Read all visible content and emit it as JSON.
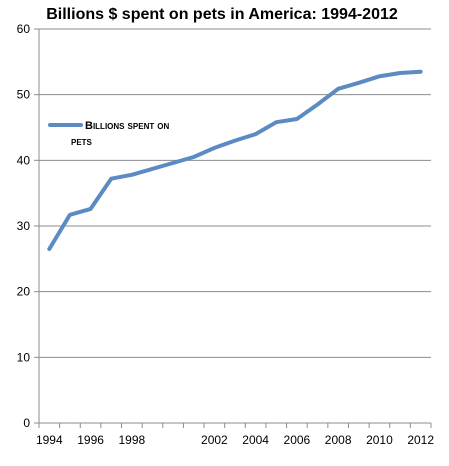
{
  "chart_data": {
    "type": "line",
    "title": "Billions $ spent on pets in America: 1994-2012",
    "xlabel": "",
    "ylabel": "",
    "x": [
      1994,
      1995,
      1996,
      1997,
      1998,
      2001,
      2002,
      2003,
      2004,
      2005,
      2006,
      2007,
      2008,
      2009,
      2010,
      2011,
      2012
    ],
    "x_ticks": [
      "1994",
      "1996",
      "1998",
      "2002",
      "2004",
      "2006",
      "2008",
      "2010",
      "2012"
    ],
    "y_ticks": [
      "0",
      "10",
      "20",
      "30",
      "40",
      "50",
      "60"
    ],
    "ylim": [
      0,
      60
    ],
    "grid": true,
    "legend": {
      "position": "left",
      "label_line1": "Billions spent on",
      "label_line2": "pets"
    },
    "series": [
      {
        "name": "Billions spent on pets",
        "values": [
          26.5,
          31.7,
          32.6,
          37.2,
          37.8,
          40.5,
          41.9,
          43.0,
          44.0,
          45.8,
          46.3,
          48.5,
          50.9,
          51.8,
          52.8,
          53.3,
          53.5
        ],
        "color": "#5b8bc2"
      }
    ]
  }
}
